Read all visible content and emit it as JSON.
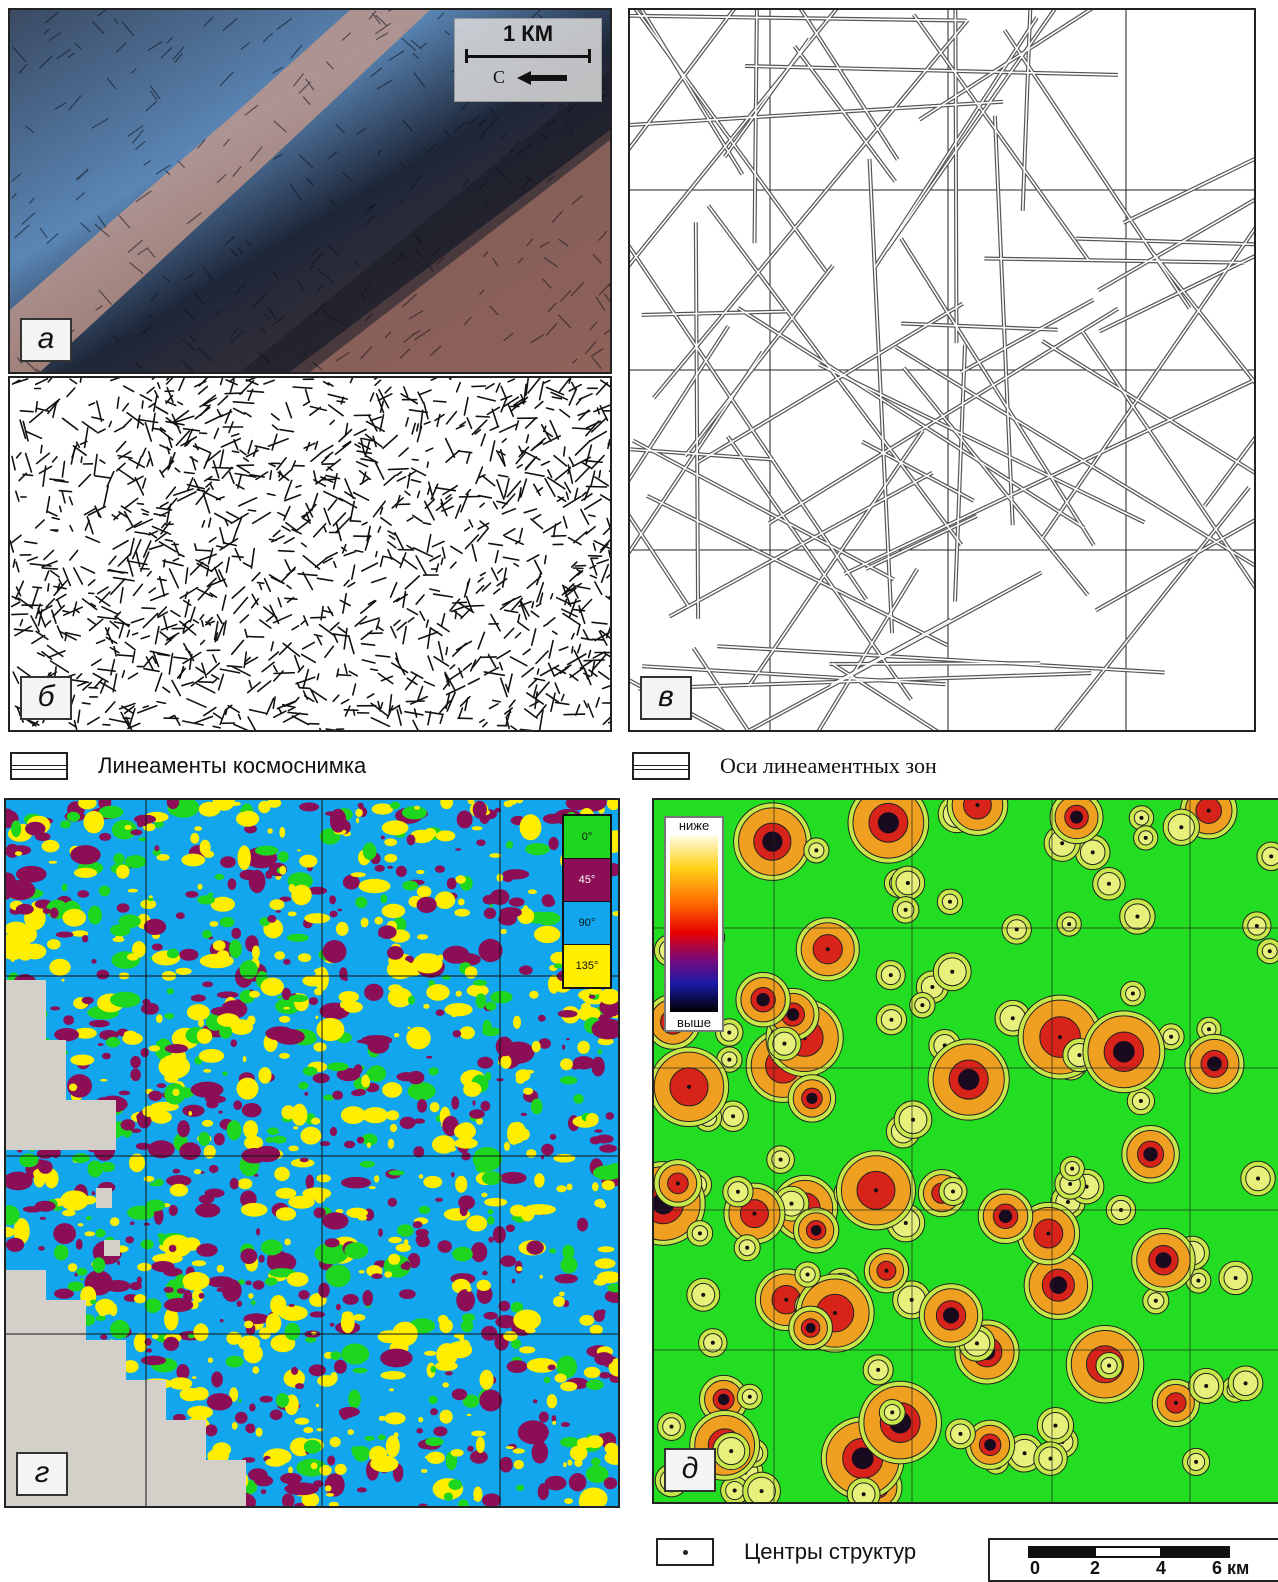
{
  "panels": {
    "a": {
      "label": "а",
      "scale_text": "1 КМ",
      "north_text": "С"
    },
    "b": {
      "label": "б"
    },
    "v": {
      "label": "в"
    },
    "g": {
      "label": "г",
      "key": [
        "0°",
        "45°",
        "90°",
        "135°"
      ]
    },
    "d": {
      "label": "д",
      "gradient_top": "ниже",
      "gradient_bottom": "выше"
    }
  },
  "legend": {
    "lineaments": "Линеаменты космоснимка",
    "zone_axes": "Оси линеаментных зон",
    "centers": "Центры структур"
  },
  "scalebar": {
    "ticks": [
      "0",
      "2",
      "4",
      "6 км"
    ]
  },
  "colors": {
    "class_0": "#1fd61f",
    "class_45": "#8b0e57",
    "class_90": "#12a6ef",
    "class_135": "#ffee00",
    "nodata": "#d3cfc9",
    "background_d": "#22dd22"
  }
}
